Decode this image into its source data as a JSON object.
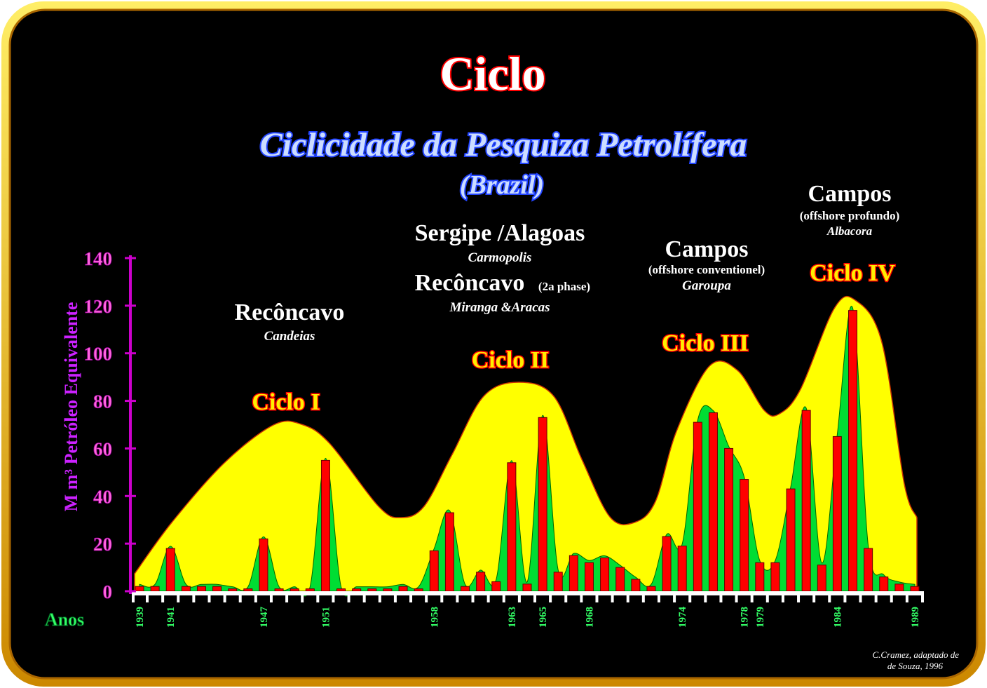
{
  "chart_data": {
    "type": "bar",
    "title": "Ciclo",
    "subtitle": "Ciclicidade da Pesquiza Petrolífera",
    "subtitle2": "(Brazil)",
    "y_label": "M m³ Petróleo Equivalente",
    "x_label": "Anos",
    "credit": [
      "C.Cramez, adaptado de",
      "de Souza, 1996"
    ],
    "cycles": [
      "Ciclo I",
      "Ciclo II",
      "Ciclo III",
      "Ciclo IV"
    ],
    "annotations": [
      "Recôncavo",
      "Candeias",
      "Sergipe /Alagoas",
      "Carmopolis",
      "Recôncavo",
      "(2a phase)",
      "Miranga &Aracas",
      "Campos",
      "(offshore conventionel)",
      "Garoupa",
      "Campos",
      "(offshore profundo)",
      "Albacora"
    ],
    "categories": [
      "1939",
      null,
      "1941",
      null,
      null,
      null,
      null,
      null,
      "1947",
      null,
      null,
      null,
      "1951",
      null,
      null,
      null,
      null,
      null,
      null,
      "1958",
      null,
      null,
      null,
      null,
      "1963",
      null,
      "1965",
      null,
      null,
      "1968",
      null,
      null,
      null,
      null,
      null,
      "1974",
      null,
      null,
      null,
      "1978",
      "1979",
      null,
      null,
      null,
      null,
      "1984",
      null,
      null,
      null,
      null,
      "1989"
    ],
    "values": [
      2,
      2,
      18,
      2,
      2,
      2,
      1,
      1,
      22,
      1,
      1,
      1,
      55,
      1,
      1,
      1,
      1,
      2,
      1,
      17,
      33,
      2,
      8,
      4,
      54,
      3,
      73,
      8,
      15,
      12,
      14,
      10,
      5,
      2,
      23,
      19,
      71,
      75,
      60,
      47,
      12,
      12,
      43,
      76,
      11,
      65,
      118,
      18,
      6,
      3,
      2
    ],
    "color": "#ff0000",
    "area_color": "#00dd33",
    "envelope_color": "#ffff00",
    "ylim": [
      0,
      140
    ],
    "yticks": [
      0,
      20,
      40,
      60,
      80,
      100,
      120,
      140
    ]
  }
}
